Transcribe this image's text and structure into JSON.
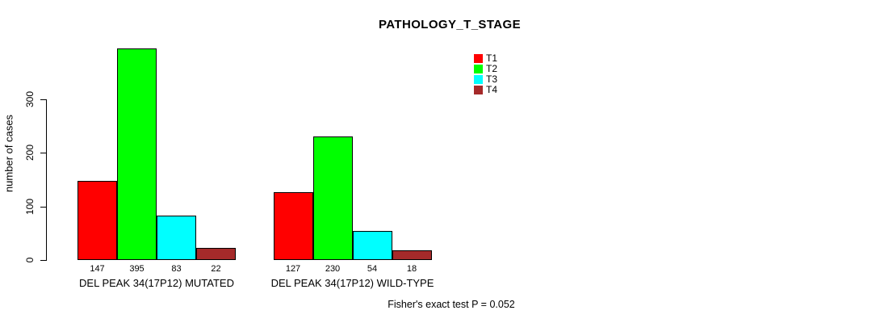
{
  "page": {
    "title": "PATHOLOGY_T_STAGE",
    "footer": "Fisher's exact test P = 0.052"
  },
  "chart_data": {
    "type": "bar",
    "title": "PATHOLOGY_T_STAGE",
    "xlabel": "",
    "ylabel": "number of cases",
    "ylim": [
      0,
      300
    ],
    "yticks": [
      0,
      100,
      200,
      300
    ],
    "grid": false,
    "show_bar_values": true,
    "legend_position": "top-right",
    "categories": [
      "DEL PEAK 34(17P12) MUTATED",
      "DEL PEAK 34(17P12) WILD-TYPE"
    ],
    "series": [
      {
        "name": "T1",
        "color": "#FF0000",
        "values": [
          147,
          127
        ]
      },
      {
        "name": "T2",
        "color": "#00FF00",
        "values": [
          395,
          230
        ]
      },
      {
        "name": "T3",
        "color": "#00FFFF",
        "values": [
          83,
          54
        ]
      },
      {
        "name": "T4",
        "color": "#A52A2A",
        "values": [
          22,
          18
        ]
      }
    ],
    "annotation": "Fisher's exact test P = 0.052"
  }
}
